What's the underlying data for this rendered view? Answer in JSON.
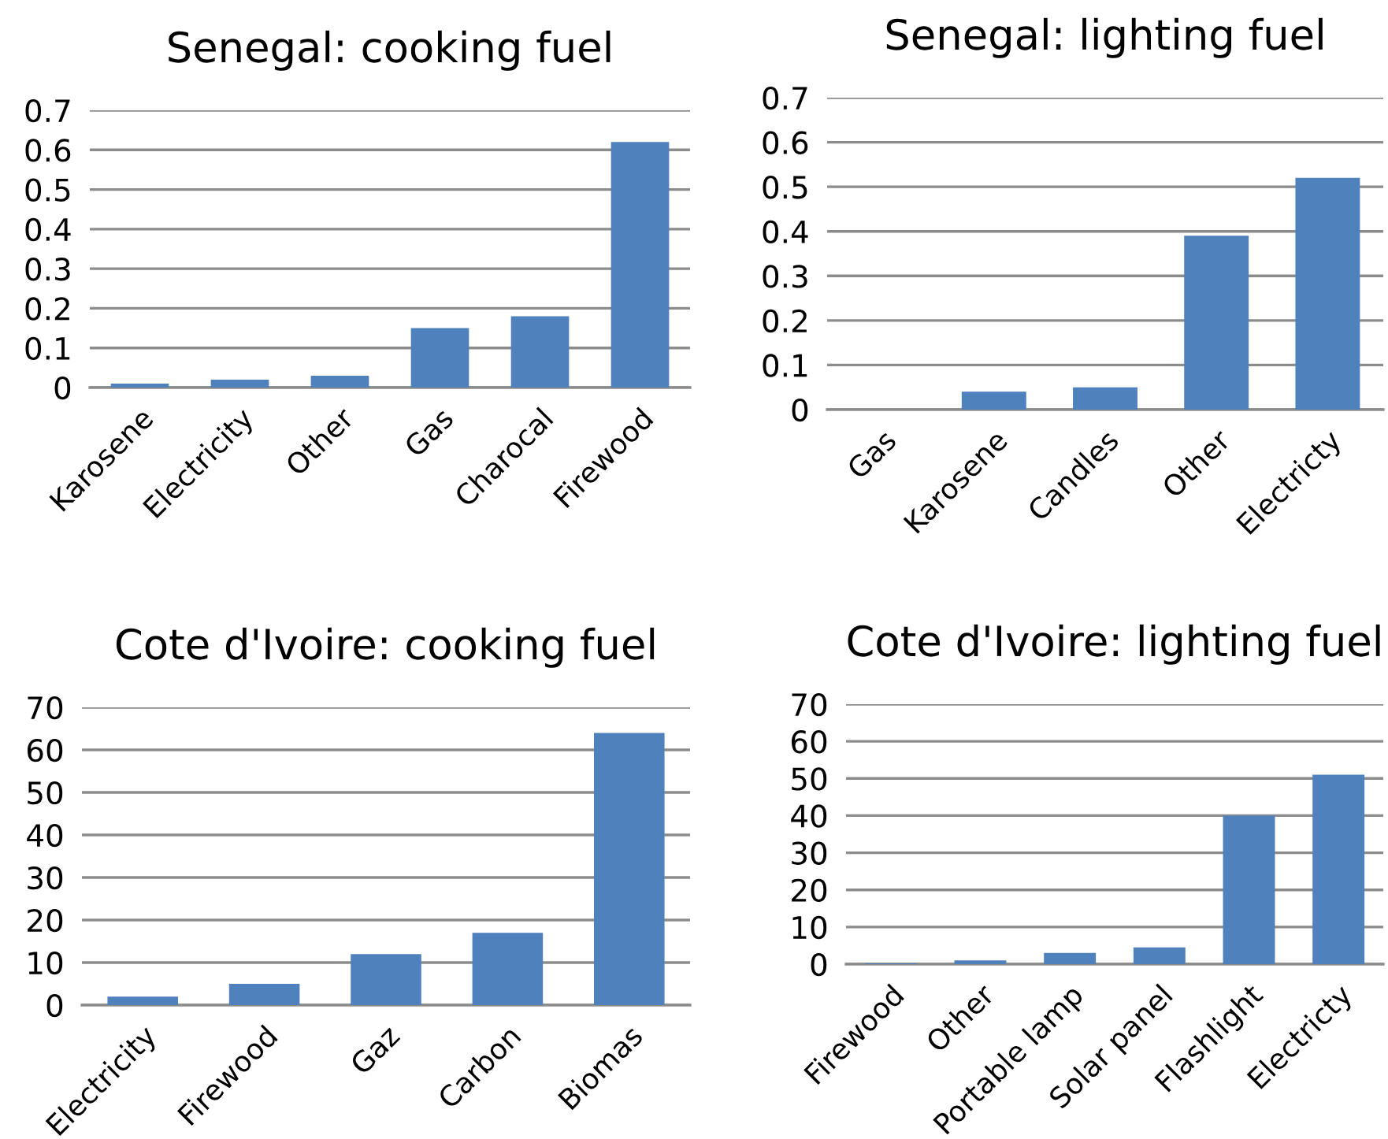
{
  "chart_data": [
    {
      "type": "bar",
      "title": "Senegal: cooking fuel",
      "categories": [
        "Karosene",
        "Electricity",
        "Other",
        "Gas",
        "Charocal",
        "Firewood"
      ],
      "values": [
        0.01,
        0.02,
        0.03,
        0.15,
        0.18,
        0.62
      ],
      "color": "#4f81bd",
      "ylim": [
        0,
        0.7
      ],
      "yticks": [
        {
          "value": 0,
          "label": "0"
        },
        0.1,
        0.2,
        0.3,
        0.4,
        0.5,
        0.6,
        0.7
      ],
      "grid": "y"
    },
    {
      "type": "bar",
      "title": "Senegal: lighting fuel",
      "categories": [
        "Gas",
        "Karosene",
        "Candles",
        "Other",
        "Electricty"
      ],
      "values": [
        0,
        0.04,
        0.05,
        0.39,
        0.52
      ],
      "color": "#4f81bd",
      "ylim": [
        0,
        0.7
      ],
      "yticks": [
        {
          "value": 0,
          "label": "0"
        },
        0.1,
        0.2,
        0.3,
        0.4,
        0.5,
        0.6,
        0.7
      ],
      "grid": "y"
    },
    {
      "type": "bar",
      "title": "Cote d'Ivoire: cooking fuel",
      "categories": [
        "Electricity",
        "Firewood",
        "Gaz",
        "Carbon",
        "Biomas"
      ],
      "values": [
        2,
        5,
        12,
        17,
        64
      ],
      "color": "#4f81bd",
      "ylim": [
        0,
        70
      ],
      "yticks": [
        0,
        10,
        20,
        30,
        40,
        50,
        60,
        70
      ],
      "grid": "y"
    },
    {
      "type": "bar",
      "title": "Cote d'Ivoire: lighting fuel",
      "categories": [
        "Firewood",
        "Other",
        "Portable lamp",
        "Solar panel",
        "Flashlight",
        "Electricty"
      ],
      "values": [
        0.2,
        1,
        3,
        4.5,
        40,
        51
      ],
      "color": "#4f81bd",
      "ylim": [
        0,
        70
      ],
      "yticks": [
        0,
        10,
        20,
        30,
        40,
        50,
        60,
        70
      ],
      "grid": "y"
    }
  ]
}
